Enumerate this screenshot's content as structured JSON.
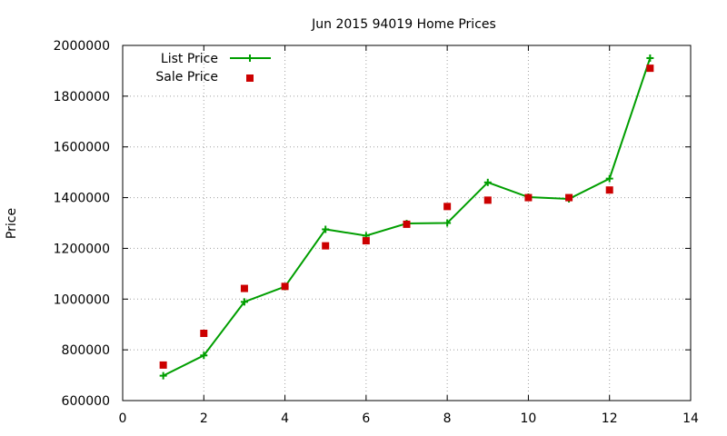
{
  "chart_data": {
    "type": "line",
    "title": "Jun 2015 94019 Home Prices",
    "xlabel": "",
    "ylabel": "Price",
    "xlim": [
      0,
      14
    ],
    "ylim": [
      600000,
      2000000
    ],
    "x_ticks": [
      0,
      2,
      4,
      6,
      8,
      10,
      12,
      14
    ],
    "y_ticks": [
      600000,
      800000,
      1000000,
      1200000,
      1400000,
      1600000,
      1800000,
      2000000
    ],
    "x_tick_labels": [
      "0",
      "2",
      "4",
      "6",
      "8",
      "10",
      "12",
      "14"
    ],
    "y_tick_labels": [
      "600000",
      "800000",
      "1000000",
      "1200000",
      "1400000",
      "1600000",
      "1800000",
      "2000000"
    ],
    "grid": true,
    "legend_position": "top-left",
    "series": [
      {
        "name": "List Price",
        "style": "line-with-plus-markers",
        "color": "#009e00",
        "x": [
          1,
          2,
          3,
          4,
          5,
          6,
          7,
          8,
          9,
          10,
          11,
          12,
          13
        ],
        "values": [
          698000,
          778000,
          989000,
          1049000,
          1275000,
          1250000,
          1298000,
          1300000,
          1460000,
          1402000,
          1395000,
          1475000,
          1950000
        ]
      },
      {
        "name": "Sale Price",
        "style": "square-markers",
        "color": "#cc0000",
        "x": [
          1,
          2,
          3,
          4,
          5,
          6,
          7,
          8,
          9,
          10,
          11,
          12,
          13
        ],
        "values": [
          740000,
          865000,
          1042000,
          1050000,
          1210000,
          1230000,
          1295000,
          1365000,
          1390000,
          1400000,
          1400000,
          1430000,
          1910000
        ]
      }
    ]
  }
}
